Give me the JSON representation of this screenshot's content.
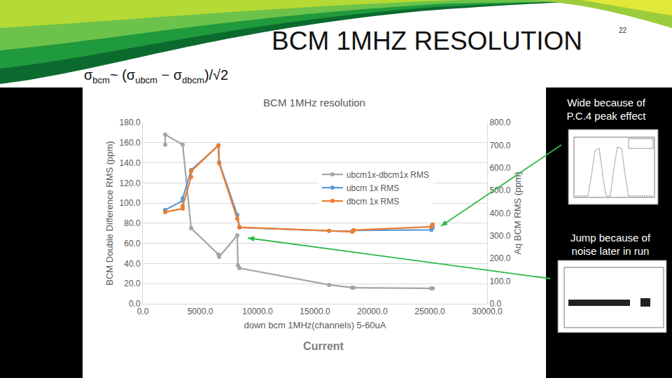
{
  "slide_title": "BCM 1MHZ RESOLUTION",
  "page_number": "22",
  "formula": [
    "σ",
    {
      "sub": "bcm"
    },
    "~ (σ",
    {
      "sub": "ubcm"
    },
    " − σ",
    {
      "sub": "dbcm"
    },
    ")/√2"
  ],
  "notes": [
    [
      "Wide because of",
      "P.C.4 peak effect"
    ],
    [
      "Jump because of",
      "noise later in run"
    ]
  ],
  "caption": "Current",
  "chart_data": {
    "type": "line",
    "marker": "circle",
    "title": "BCM 1MHz resolution",
    "x_label": "down bcm 1MHz(channels) 5-60uA",
    "y_label": "BCM Double Difference RMS (ppm)",
    "y2_label": "Aq BCM RMS (ppm)",
    "xlim": [
      0,
      30000
    ],
    "xticks": [
      {
        "value": 0,
        "label": "0.0"
      },
      {
        "value": 5000,
        "label": "5000.0"
      },
      {
        "value": 10000,
        "label": "10000.0"
      },
      {
        "value": 15000,
        "label": "15000.0"
      },
      {
        "value": 20000,
        "label": "20000.0"
      },
      {
        "value": 25000,
        "label": "25000.0"
      },
      {
        "value": 30000,
        "label": "30000.0"
      }
    ],
    "ylim": [
      0,
      180
    ],
    "yticks": [
      {
        "value": 0,
        "label": "0.0"
      },
      {
        "value": 20,
        "label": "20.0"
      },
      {
        "value": 40,
        "label": "40.0"
      },
      {
        "value": 60,
        "label": "60.0"
      },
      {
        "value": 80,
        "label": "80.0"
      },
      {
        "value": 100,
        "label": "100.0"
      },
      {
        "value": 120,
        "label": "120.0"
      },
      {
        "value": 140,
        "label": "140.0"
      },
      {
        "value": 160,
        "label": "160.0"
      },
      {
        "value": 180,
        "label": "180.0"
      }
    ],
    "y2lim": [
      0,
      800
    ],
    "y2ticks": [
      {
        "value": 0,
        "label": "0.0"
      },
      {
        "value": 100,
        "label": "100.0"
      },
      {
        "value": 200,
        "label": "200.0"
      },
      {
        "value": 300,
        "label": "300.0"
      },
      {
        "value": 400,
        "label": "400.0"
      },
      {
        "value": 500,
        "label": "500.0"
      },
      {
        "value": 600,
        "label": "600.0"
      },
      {
        "value": 700,
        "label": "700.0"
      },
      {
        "value": 800,
        "label": "800.0"
      }
    ],
    "grid": true,
    "legend": "center",
    "series": [
      {
        "name": "ubcm1x-dbcm1x RMS",
        "color": "#a5a5a5",
        "x": [
          1950,
          1950,
          3475,
          4210,
          6590,
          6650,
          8230,
          8290,
          8420,
          16230,
          18240,
          18360,
          25130,
          25250
        ],
        "values": [
          158,
          168,
          158,
          75,
          49,
          46.5,
          68,
          38,
          35.4,
          18.8,
          16,
          16,
          15.3,
          15.3
        ]
      },
      {
        "name": "ubcm 1x RMS",
        "color": "#5b9bd5",
        "axis": "y2",
        "x": [
          1950,
          3475,
          3475,
          4210,
          6590,
          6650,
          8230,
          8420,
          16230,
          18240,
          18360,
          25130,
          25250
        ],
        "values": [
          414,
          455,
          465,
          590,
          698,
          624,
          392,
          337,
          322,
          320,
          324,
          326,
          337
        ]
      },
      {
        "name": "dbcm 1x RMS",
        "color": "#ed7d31",
        "axis": "y2",
        "x": [
          1950,
          3475,
          3475,
          4210,
          4210,
          6590,
          6650,
          8230,
          8420,
          16230,
          18240,
          18360,
          25130,
          25250
        ],
        "values": [
          405,
          420,
          432,
          560,
          585,
          700,
          620,
          375,
          338,
          322,
          318,
          325,
          340,
          350
        ]
      }
    ]
  }
}
